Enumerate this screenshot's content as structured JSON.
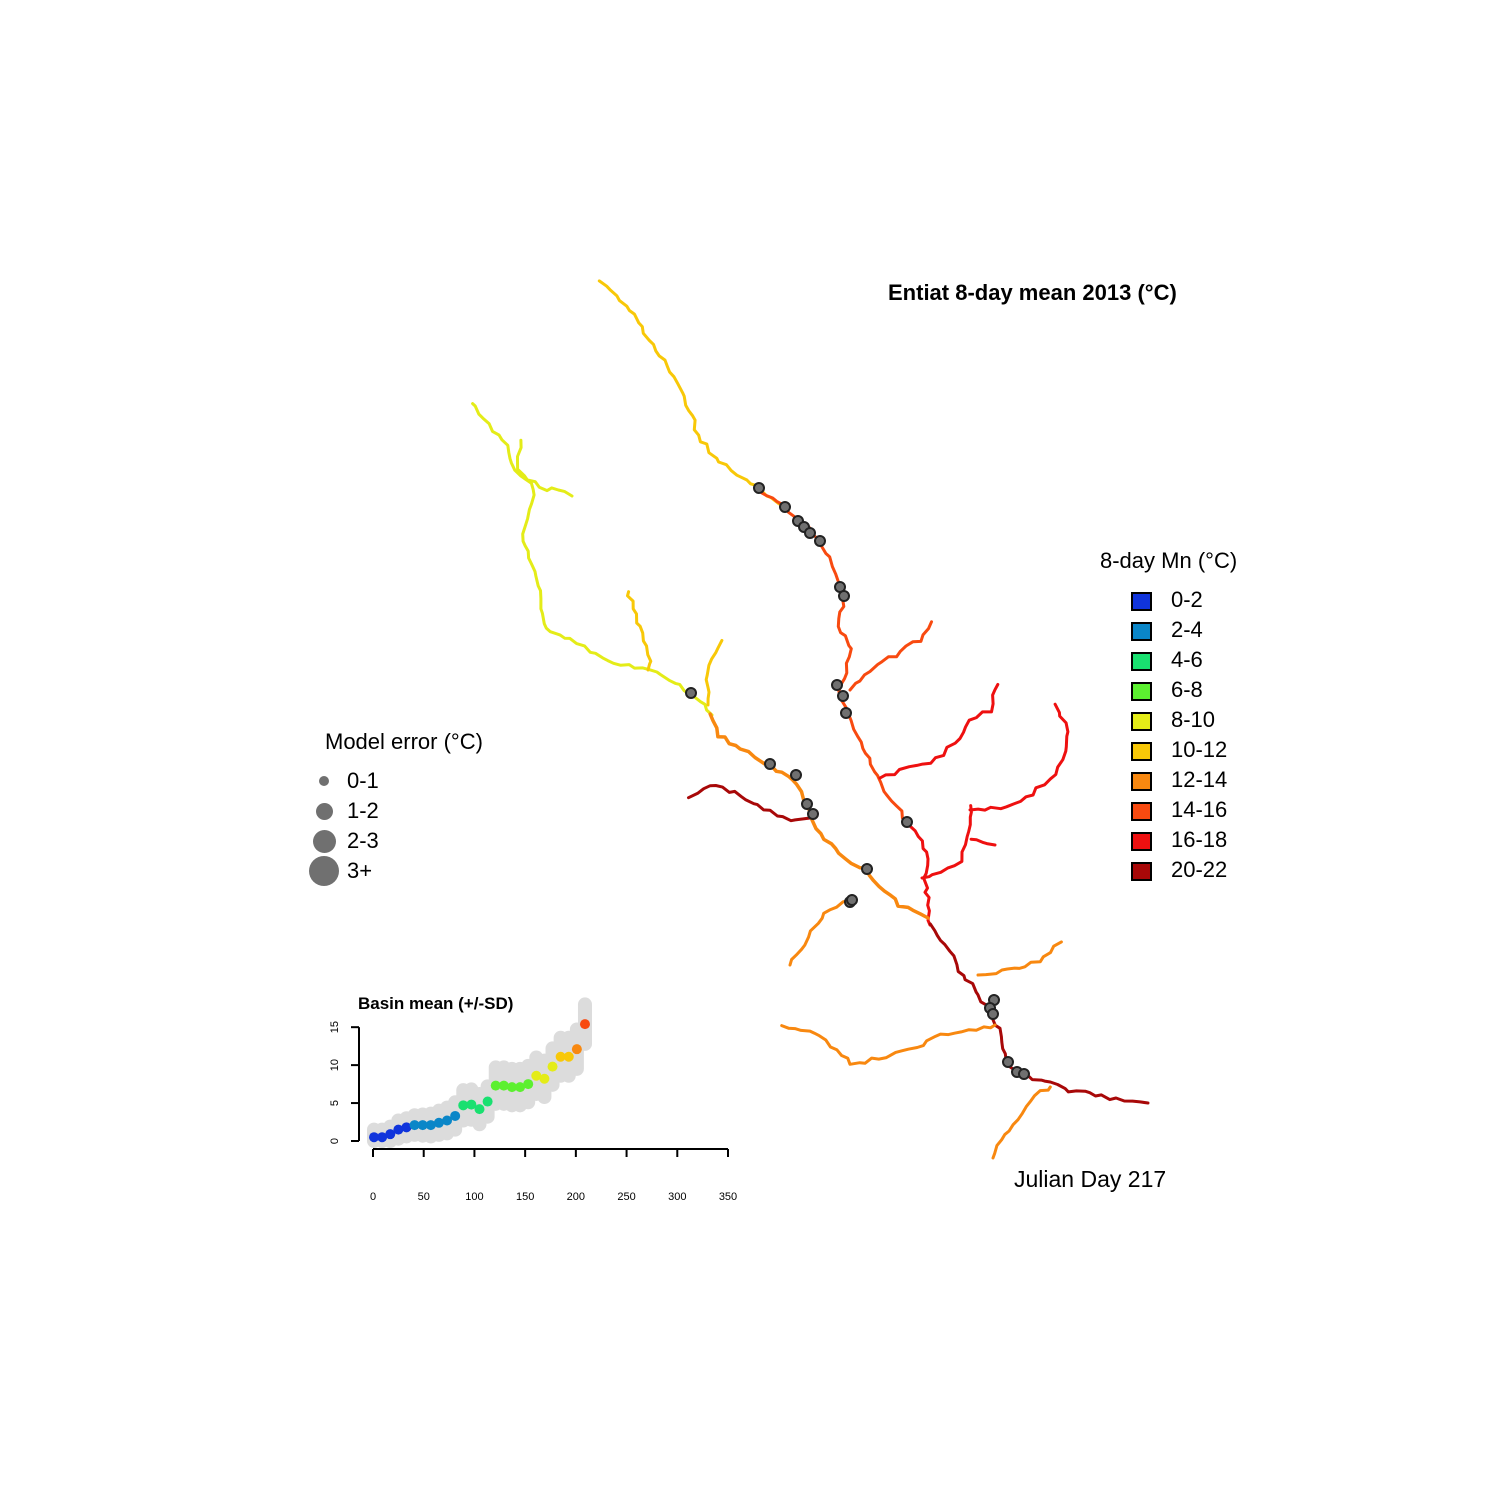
{
  "title": "Entiat 8-day mean 2013 (°C)",
  "temperature_legend": {
    "title": "8-day Mn (°C)",
    "items": [
      {
        "label": "0-2",
        "color": "#1034dc"
      },
      {
        "label": "2-4",
        "color": "#0a86c8"
      },
      {
        "label": "4-6",
        "color": "#19e070"
      },
      {
        "label": "6-8",
        "color": "#5cf030"
      },
      {
        "label": "8-10",
        "color": "#e4ec18"
      },
      {
        "label": "10-12",
        "color": "#f8c808"
      },
      {
        "label": "12-14",
        "color": "#f88810"
      },
      {
        "label": "14-16",
        "color": "#f84a10"
      },
      {
        "label": "16-18",
        "color": "#ee1010"
      },
      {
        "label": "20-22",
        "color": "#a80808"
      }
    ]
  },
  "error_legend": {
    "title": "Model error (°C)",
    "items": [
      {
        "label": "0-1"
      },
      {
        "label": "1-2"
      },
      {
        "label": "2-3"
      },
      {
        "label": "3+"
      }
    ]
  },
  "julian_day_label": "Julian Day 217",
  "chart_data": {
    "type": "scatter",
    "title": "Basin mean (+/-SD)",
    "xlabel": "",
    "ylabel": "",
    "xlim": [
      0,
      350
    ],
    "ylim": [
      0,
      17
    ],
    "x_ticks": [
      0,
      50,
      100,
      150,
      200,
      250,
      300,
      350
    ],
    "y_ticks": [
      0,
      5,
      10,
      15
    ],
    "points": [
      {
        "x": 1,
        "y": 0.5,
        "sd": 1.0
      },
      {
        "x": 9,
        "y": 0.5,
        "sd": 1.0
      },
      {
        "x": 17,
        "y": 0.9,
        "sd": 1.0
      },
      {
        "x": 25,
        "y": 1.5,
        "sd": 1.2
      },
      {
        "x": 33,
        "y": 1.8,
        "sd": 1.2
      },
      {
        "x": 41,
        "y": 2.1,
        "sd": 1.3
      },
      {
        "x": 49,
        "y": 2.1,
        "sd": 1.4
      },
      {
        "x": 57,
        "y": 2.1,
        "sd": 1.5
      },
      {
        "x": 65,
        "y": 2.4,
        "sd": 1.6
      },
      {
        "x": 73,
        "y": 2.7,
        "sd": 1.7
      },
      {
        "x": 81,
        "y": 3.3,
        "sd": 1.8
      },
      {
        "x": 89,
        "y": 4.7,
        "sd": 2.0
      },
      {
        "x": 97,
        "y": 4.8,
        "sd": 2.0
      },
      {
        "x": 105,
        "y": 4.2,
        "sd": 2.0
      },
      {
        "x": 113,
        "y": 5.2,
        "sd": 2.0
      },
      {
        "x": 121,
        "y": 7.3,
        "sd": 2.4
      },
      {
        "x": 129,
        "y": 7.3,
        "sd": 2.4
      },
      {
        "x": 137,
        "y": 7.1,
        "sd": 2.4
      },
      {
        "x": 145,
        "y": 7.1,
        "sd": 2.4
      },
      {
        "x": 153,
        "y": 7.5,
        "sd": 2.4
      },
      {
        "x": 161,
        "y": 8.6,
        "sd": 2.4
      },
      {
        "x": 169,
        "y": 8.2,
        "sd": 2.4
      },
      {
        "x": 177,
        "y": 9.8,
        "sd": 2.4
      },
      {
        "x": 185,
        "y": 11.1,
        "sd": 2.5
      },
      {
        "x": 193,
        "y": 11.1,
        "sd": 2.5
      },
      {
        "x": 201,
        "y": 12.1,
        "sd": 2.6
      },
      {
        "x": 209,
        "y": 15.4,
        "sd": 2.6
      }
    ]
  }
}
